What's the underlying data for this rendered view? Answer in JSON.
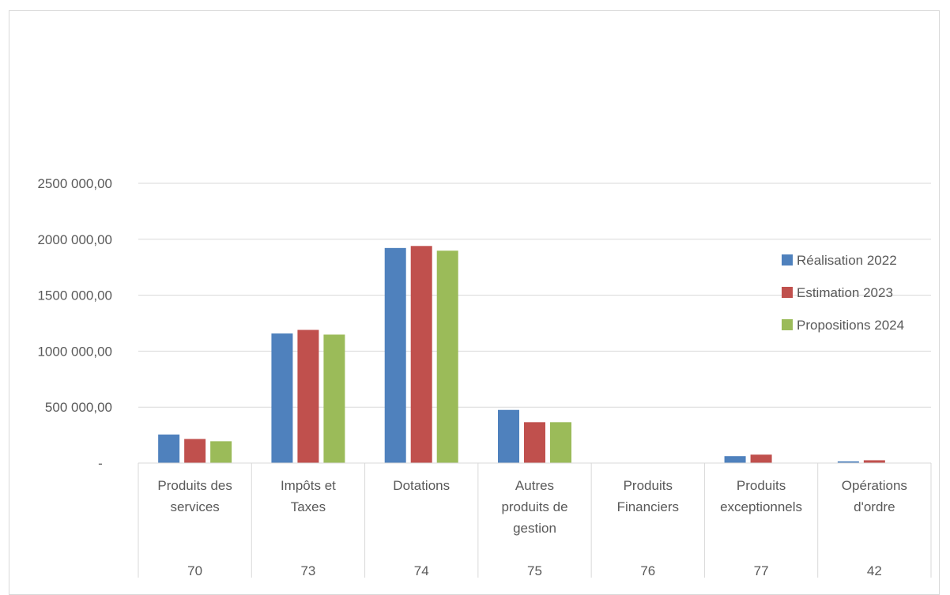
{
  "chart_data": {
    "type": "bar",
    "title": "",
    "xlabel": "",
    "ylabel": "",
    "ylim": [
      0,
      2500000
    ],
    "ytick_values": [
      0,
      500000,
      1000000,
      1500000,
      2000000,
      2500000
    ],
    "ytick_labels": [
      "-",
      "500 000,00",
      "1000 000,00",
      "1500 000,00",
      "2000 000,00",
      "2500 000,00"
    ],
    "grid": true,
    "legend_position": "right",
    "categories": [
      {
        "label": [
          "Produits des",
          "services"
        ],
        "code": "70"
      },
      {
        "label": [
          "Impôts et",
          "Taxes"
        ],
        "code": "73"
      },
      {
        "label": [
          "Dotations"
        ],
        "code": "74"
      },
      {
        "label": [
          "Autres",
          "produits de",
          "gestion"
        ],
        "code": "75"
      },
      {
        "label": [
          "Produits",
          "Financiers"
        ],
        "code": "76"
      },
      {
        "label": [
          "Produits",
          "exceptionnels"
        ],
        "code": "77"
      },
      {
        "label": [
          "Opérations",
          "d'ordre"
        ],
        "code": "42"
      }
    ],
    "series": [
      {
        "name": "Réalisation 2022",
        "color": "#4f81bd",
        "values": [
          255000,
          1158000,
          1922000,
          475000,
          0,
          62000,
          15000
        ]
      },
      {
        "name": "Estimation 2023",
        "color": "#c0504d",
        "values": [
          215000,
          1190000,
          1940000,
          365000,
          0,
          75000,
          25000
        ]
      },
      {
        "name": "Propositions 2024",
        "color": "#9bbb59",
        "values": [
          195000,
          1148000,
          1898000,
          365000,
          0,
          0,
          0
        ]
      }
    ]
  }
}
